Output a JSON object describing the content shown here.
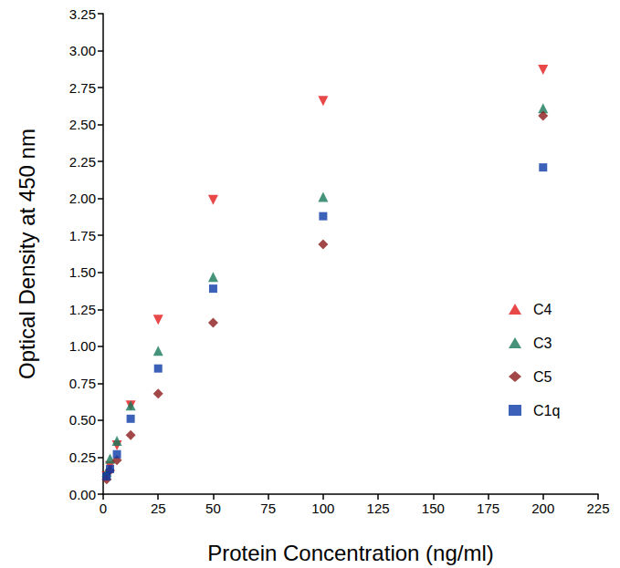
{
  "chart_data": {
    "type": "scatter",
    "x_label": "Protein Concentration (ng/ml)",
    "y_label": "Optical Density at 450 nm",
    "x": [
      1.5625,
      3.125,
      6.25,
      12.5,
      25,
      50,
      100,
      200
    ],
    "series": [
      {
        "name": "C4",
        "color": "#e31a1c",
        "marker": "triangle_down",
        "values": [
          0.12,
          0.19,
          0.33,
          0.6,
          1.18,
          1.99,
          2.66,
          2.87
        ]
      },
      {
        "name": "C3",
        "color": "#17785a",
        "marker": "triangle",
        "values": [
          0.15,
          0.24,
          0.36,
          0.6,
          0.97,
          1.47,
          2.01,
          2.61
        ]
      },
      {
        "name": "C5",
        "color": "#8b1a1a",
        "marker": "diamond",
        "values": [
          0.1,
          0.16,
          0.23,
          0.4,
          0.68,
          1.16,
          1.69,
          2.56
        ]
      },
      {
        "name": "C1q",
        "color": "#0b3aa8",
        "marker": "square",
        "values": [
          0.12,
          0.17,
          0.27,
          0.51,
          0.85,
          1.39,
          1.88,
          2.21
        ]
      }
    ],
    "xlim": [
      0,
      225
    ],
    "xticks": [
      0,
      25,
      50,
      75,
      100,
      125,
      150,
      175,
      200,
      225
    ],
    "ylim": [
      0,
      3.25
    ],
    "yticks": [
      {
        "value": 0,
        "label": "0.00"
      },
      {
        "value": 0.25,
        "label": "0.25"
      },
      {
        "value": 0.5,
        "label": "0.50"
      },
      {
        "value": 0.75,
        "label": "0.75"
      },
      {
        "value": 1,
        "label": "1.00"
      },
      {
        "value": 1.25,
        "label": "1.25"
      },
      {
        "value": 1.5,
        "label": "1.50"
      },
      {
        "value": 1.75,
        "label": "1.75"
      },
      {
        "value": 2,
        "label": "2.00"
      },
      {
        "value": 2.25,
        "label": "2.25"
      },
      {
        "value": 2.5,
        "label": "2.50"
      },
      {
        "value": 2.75,
        "label": "2.75"
      },
      {
        "value": 3,
        "label": "3.00"
      },
      {
        "value": 3.25,
        "label": "3.25"
      }
    ],
    "grid": false,
    "legend": "right"
  }
}
